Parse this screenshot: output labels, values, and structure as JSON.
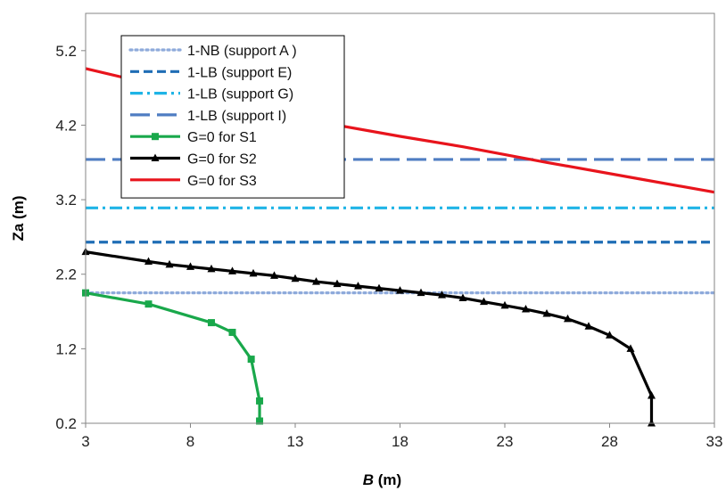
{
  "chart_data": {
    "type": "line",
    "xlabel": {
      "italic": "B",
      "rest": " (m)"
    },
    "ylabel": "Za (m)",
    "xlim": [
      3,
      33
    ],
    "ylim": [
      0.2,
      5.7
    ],
    "xticks": [
      3,
      8,
      13,
      18,
      23,
      28,
      33
    ],
    "xtick_labels": [
      "3",
      "8",
      "13",
      "18",
      "23",
      "28",
      "33"
    ],
    "yticks": [
      0.2,
      1.2,
      2.2,
      3.2,
      4.2,
      5.2
    ],
    "ytick_labels": [
      "0.2",
      "1.2",
      "2.2",
      "3.2",
      "4.2",
      "5.2"
    ],
    "grid": false,
    "legend_position": "top-left",
    "series": [
      {
        "name": "1-NB (support A )",
        "color": "#8eaadb",
        "dash": "dot",
        "marker": "none",
        "x": [
          3,
          33
        ],
        "y": [
          1.95,
          1.95
        ]
      },
      {
        "name": "1-LB (support E)",
        "color": "#1f6db5",
        "dash": "dash",
        "marker": "none",
        "x": [
          3,
          33
        ],
        "y": [
          2.63,
          2.63
        ]
      },
      {
        "name": "1-LB (support G)",
        "color": "#1fb4e6",
        "dash": "dashdot",
        "marker": "none",
        "x": [
          3,
          33
        ],
        "y": [
          3.09,
          3.09
        ]
      },
      {
        "name": "1-LB (support I)",
        "color": "#4f7dc2",
        "dash": "longdash",
        "marker": "none",
        "x": [
          3,
          33
        ],
        "y": [
          3.74,
          3.74
        ]
      },
      {
        "name": "G=0 for S1",
        "color": "#19a84b",
        "dash": "solid",
        "marker": "square",
        "x": [
          3,
          6,
          9,
          10,
          10.9,
          11.3,
          11.3
        ],
        "y": [
          1.95,
          1.8,
          1.55,
          1.42,
          1.06,
          0.5,
          0.23
        ]
      },
      {
        "name": "G=0 for S2",
        "color": "#000000",
        "dash": "solid",
        "marker": "triangle",
        "x": [
          3,
          6,
          7,
          8,
          9,
          10,
          11,
          12,
          13,
          14,
          15,
          16,
          17,
          18,
          19,
          20,
          21,
          22,
          23,
          24,
          25,
          26,
          27,
          28,
          29,
          30,
          30
        ],
        "y": [
          2.5,
          2.37,
          2.33,
          2.3,
          2.27,
          2.24,
          2.21,
          2.18,
          2.14,
          2.1,
          2.07,
          2.04,
          2.01,
          1.98,
          1.95,
          1.92,
          1.88,
          1.83,
          1.78,
          1.73,
          1.67,
          1.6,
          1.5,
          1.38,
          1.2,
          0.57,
          0.2
        ]
      },
      {
        "name": "G=0 for S3",
        "color": "#e8141c",
        "dash": "solid",
        "marker": "none",
        "x": [
          3,
          6,
          10,
          14,
          18,
          21,
          25,
          29,
          33
        ],
        "y": [
          4.96,
          4.76,
          4.5,
          4.25,
          4.05,
          3.91,
          3.7,
          3.5,
          3.3
        ]
      }
    ]
  }
}
